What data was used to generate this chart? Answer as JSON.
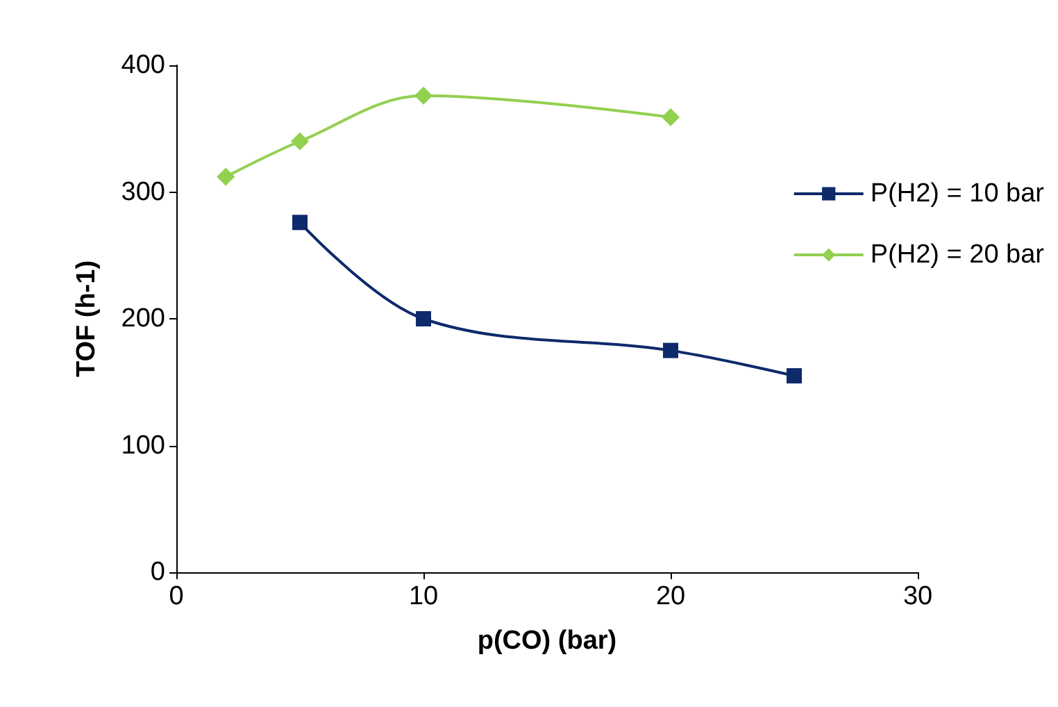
{
  "chart_data": {
    "type": "line",
    "xlabel": "p(CO) (bar)",
    "ylabel": "TOF (h-1)",
    "xlim": [
      0,
      30
    ],
    "xticks": [
      0,
      10,
      20,
      30
    ],
    "ylim": [
      0,
      400
    ],
    "yticks": [
      0,
      100,
      200,
      300,
      400
    ],
    "grid": false,
    "legend": "right",
    "series": [
      {
        "name": "P(H2) = 10 bar",
        "color": "#0d2a6b",
        "marker": "square",
        "x": [
          5,
          10,
          20,
          25
        ],
        "values": [
          276,
          200,
          175,
          155
        ]
      },
      {
        "name": "P(H2) = 20 bar",
        "color": "#92d050",
        "marker": "diamond",
        "x": [
          2,
          5,
          10,
          20
        ],
        "values": [
          312,
          340,
          376,
          359
        ]
      }
    ]
  }
}
